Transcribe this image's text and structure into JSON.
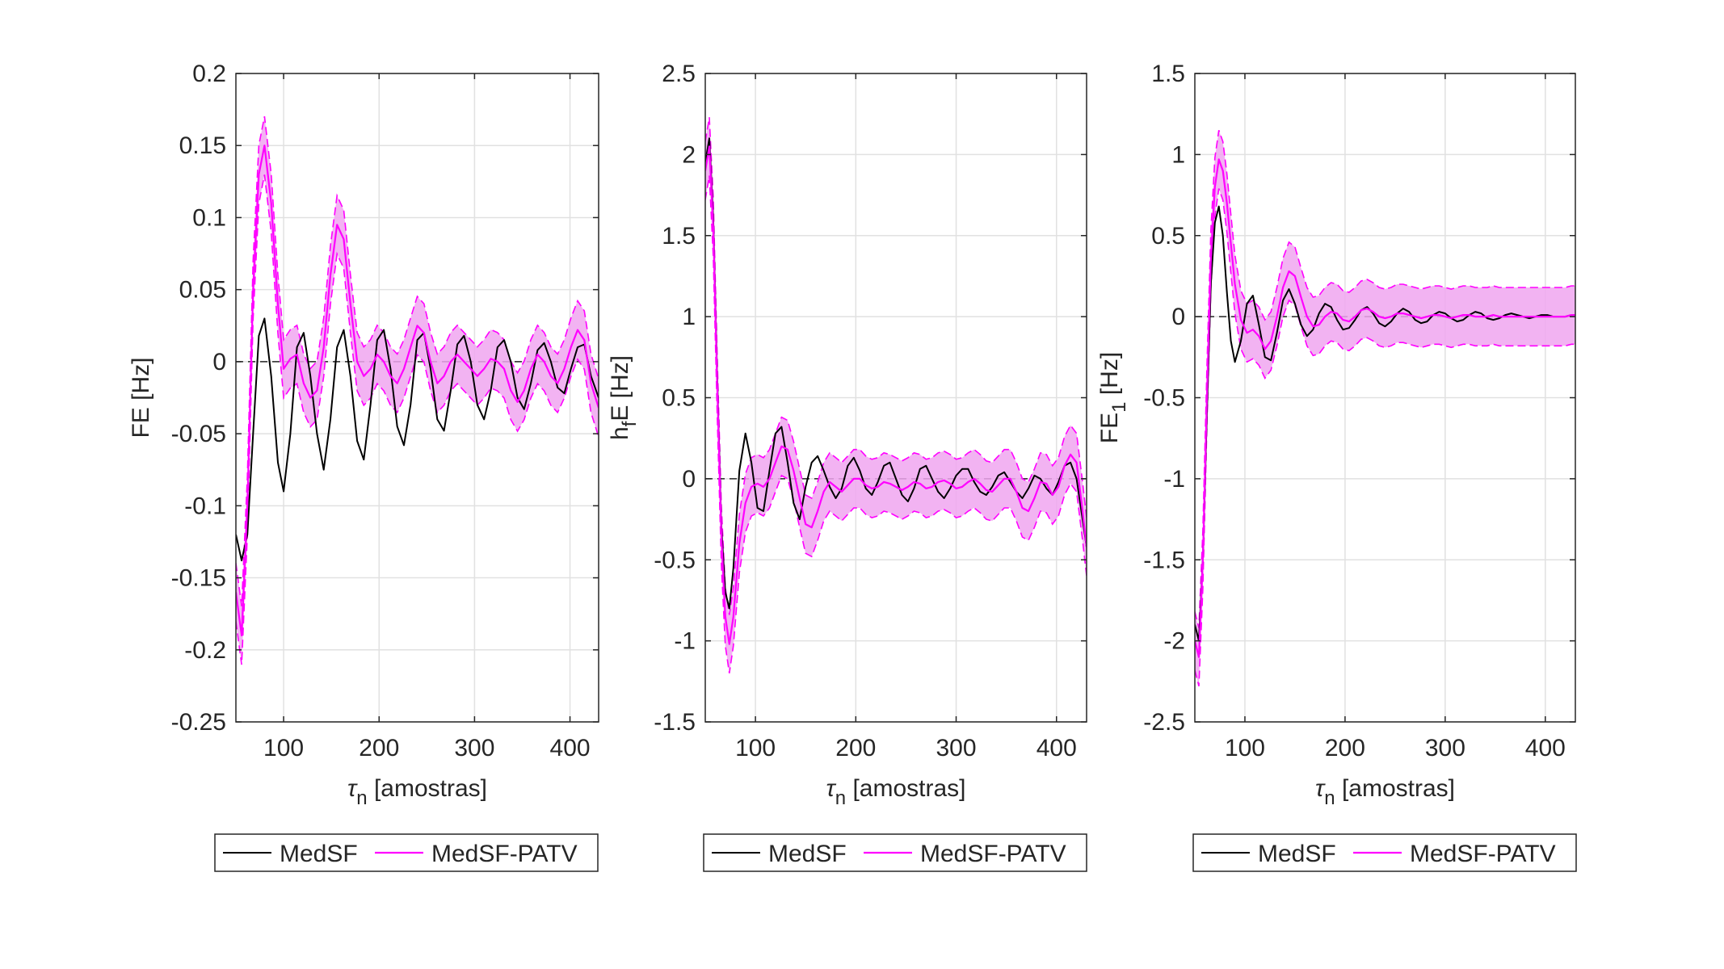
{
  "colors": {
    "medsf": "#000000",
    "medsf_patv": "#ff00ff",
    "band_fill": "#f0a6f0",
    "zero_line": "#262626",
    "grid": "#e1e1e1",
    "axes": "#262626"
  },
  "legend": {
    "entries": [
      "MedSF",
      "MedSF-PATV"
    ]
  },
  "chart_data": [
    {
      "type": "line",
      "ylabel": "FE [Hz]",
      "xlabel": "τn [amostras]",
      "xlim": [
        50,
        430
      ],
      "ylim": [
        -0.25,
        0.2
      ],
      "xticks": [
        100,
        200,
        300,
        400
      ],
      "yticks": [
        -0.25,
        -0.2,
        -0.15,
        -0.1,
        -0.05,
        0,
        0.05,
        0.1,
        0.15,
        0.2
      ],
      "ytick_labels": [
        "-0.25",
        "-0.2",
        "-0.15",
        "-0.1",
        "-0.05",
        "0",
        "0.05",
        "0.1",
        "0.15",
        "0.2"
      ],
      "grid": true,
      "zero_line": true,
      "legend_placement": "below",
      "series": [
        {
          "name": "MedSF",
          "x": [
            50,
            56,
            62,
            68,
            74,
            80,
            87,
            94,
            100,
            107,
            114,
            121,
            128,
            135,
            142,
            149,
            156,
            163,
            170,
            177,
            184,
            191,
            198,
            205,
            212,
            219,
            226,
            233,
            240,
            247,
            254,
            261,
            268,
            275,
            282,
            289,
            296,
            303,
            310,
            317,
            324,
            331,
            338,
            345,
            352,
            359,
            366,
            373,
            380,
            387,
            394,
            401,
            408,
            415,
            422,
            430
          ],
          "y": [
            -0.12,
            -0.138,
            -0.12,
            -0.05,
            0.018,
            0.03,
            -0.01,
            -0.07,
            -0.09,
            -0.05,
            0.01,
            0.02,
            -0.01,
            -0.05,
            -0.075,
            -0.04,
            0.01,
            0.022,
            -0.01,
            -0.055,
            -0.068,
            -0.03,
            0.015,
            0.022,
            -0.005,
            -0.045,
            -0.058,
            -0.03,
            0.015,
            0.02,
            -0.005,
            -0.04,
            -0.048,
            -0.02,
            0.012,
            0.018,
            0.0,
            -0.03,
            -0.04,
            -0.02,
            0.01,
            0.015,
            0.0,
            -0.025,
            -0.033,
            -0.015,
            0.008,
            0.013,
            0.0,
            -0.018,
            -0.022,
            -0.005,
            0.01,
            0.012,
            -0.01,
            -0.025
          ]
        },
        {
          "name": "MedSF-PATV",
          "x": [
            50,
            56,
            62,
            68,
            74,
            80,
            87,
            94,
            100,
            107,
            114,
            121,
            128,
            135,
            142,
            149,
            156,
            163,
            170,
            177,
            184,
            191,
            198,
            205,
            212,
            219,
            226,
            233,
            240,
            247,
            254,
            261,
            268,
            275,
            282,
            289,
            296,
            303,
            310,
            317,
            324,
            331,
            338,
            345,
            352,
            359,
            366,
            373,
            380,
            387,
            394,
            401,
            408,
            415,
            422,
            430
          ],
          "y": [
            -0.16,
            -0.19,
            -0.1,
            0.05,
            0.13,
            0.15,
            0.11,
            0.04,
            -0.005,
            0.002,
            0.005,
            -0.015,
            -0.025,
            -0.02,
            0.01,
            0.06,
            0.095,
            0.085,
            0.04,
            0.0,
            -0.01,
            -0.005,
            0.005,
            0.0,
            -0.01,
            -0.015,
            -0.005,
            0.01,
            0.025,
            0.02,
            0.0,
            -0.015,
            -0.01,
            0.0,
            0.005,
            0.0,
            -0.005,
            -0.01,
            -0.005,
            0.002,
            0.0,
            -0.005,
            -0.02,
            -0.028,
            -0.02,
            -0.005,
            0.005,
            0.0,
            -0.01,
            -0.015,
            -0.005,
            0.01,
            0.022,
            0.015,
            -0.015,
            -0.032
          ]
        }
      ]
    },
    {
      "type": "line",
      "ylabel": "hfE [Hz]",
      "ylabel_main": "h",
      "ylabel_sub": "f",
      "ylabel_rest": "E [Hz]",
      "xlabel": "τn [amostras]",
      "xlim": [
        50,
        430
      ],
      "ylim": [
        -1.5,
        2.5
      ],
      "xticks": [
        100,
        200,
        300,
        400
      ],
      "yticks": [
        -1.5,
        -1,
        -0.5,
        0,
        0.5,
        1,
        1.5,
        2,
        2.5
      ],
      "ytick_labels": [
        "-1.5",
        "-1",
        "-0.5",
        "0",
        "0.5",
        "1",
        "1.5",
        "2",
        "2.5"
      ],
      "grid": true,
      "zero_line": true,
      "legend_placement": "below",
      "series": [
        {
          "name": "MedSF",
          "x": [
            50,
            54,
            58,
            62,
            66,
            70,
            74,
            78,
            84,
            90,
            96,
            102,
            108,
            114,
            120,
            126,
            132,
            138,
            144,
            150,
            156,
            162,
            168,
            174,
            180,
            186,
            192,
            198,
            204,
            210,
            216,
            222,
            228,
            234,
            240,
            246,
            252,
            258,
            264,
            270,
            276,
            282,
            288,
            294,
            300,
            306,
            312,
            318,
            324,
            330,
            336,
            342,
            348,
            354,
            360,
            366,
            372,
            378,
            384,
            390,
            396,
            402,
            408,
            414,
            420,
            426,
            430
          ],
          "y": [
            1.95,
            2.1,
            1.6,
            0.6,
            -0.3,
            -0.7,
            -0.8,
            -0.55,
            0.05,
            0.28,
            0.1,
            -0.18,
            -0.2,
            0.05,
            0.28,
            0.32,
            0.1,
            -0.15,
            -0.25,
            -0.05,
            0.1,
            0.14,
            0.05,
            -0.05,
            -0.12,
            -0.06,
            0.08,
            0.13,
            0.05,
            -0.06,
            -0.1,
            -0.02,
            0.08,
            0.1,
            0.0,
            -0.1,
            -0.14,
            -0.06,
            0.06,
            0.08,
            0.0,
            -0.08,
            -0.12,
            -0.06,
            0.02,
            0.06,
            0.06,
            -0.02,
            -0.08,
            -0.1,
            -0.05,
            0.02,
            0.04,
            -0.02,
            -0.08,
            -0.12,
            -0.06,
            0.02,
            0.0,
            -0.06,
            -0.1,
            -0.02,
            0.08,
            0.1,
            0.0,
            -0.25,
            -0.42
          ]
        },
        {
          "name": "MedSF-PATV",
          "x": [
            50,
            54,
            58,
            62,
            66,
            70,
            74,
            78,
            84,
            90,
            96,
            102,
            108,
            114,
            120,
            126,
            132,
            138,
            144,
            150,
            156,
            162,
            168,
            174,
            180,
            186,
            192,
            198,
            204,
            210,
            216,
            222,
            228,
            234,
            240,
            246,
            252,
            258,
            264,
            270,
            276,
            282,
            288,
            294,
            300,
            306,
            312,
            318,
            324,
            330,
            336,
            342,
            348,
            354,
            360,
            366,
            372,
            378,
            384,
            390,
            396,
            402,
            408,
            414,
            420,
            426,
            430
          ],
          "y": [
            1.9,
            2.05,
            1.55,
            0.55,
            -0.35,
            -0.85,
            -1.02,
            -0.85,
            -0.4,
            -0.15,
            -0.05,
            -0.03,
            -0.05,
            0.0,
            0.1,
            0.2,
            0.18,
            0.05,
            -0.12,
            -0.28,
            -0.3,
            -0.2,
            -0.08,
            -0.02,
            -0.05,
            -0.08,
            -0.04,
            0.0,
            0.0,
            -0.04,
            -0.06,
            -0.05,
            -0.02,
            -0.03,
            -0.05,
            -0.07,
            -0.05,
            -0.02,
            -0.03,
            -0.06,
            -0.05,
            -0.02,
            -0.01,
            -0.03,
            -0.06,
            -0.05,
            -0.02,
            0.0,
            -0.03,
            -0.07,
            -0.08,
            -0.04,
            0.0,
            0.0,
            -0.08,
            -0.18,
            -0.2,
            -0.12,
            -0.02,
            -0.03,
            -0.1,
            -0.05,
            0.08,
            0.15,
            0.1,
            -0.2,
            -0.42
          ]
        }
      ]
    },
    {
      "type": "line",
      "ylabel": "FE1 [Hz]",
      "ylabel_main": "FE",
      "ylabel_sub": "1",
      "ylabel_rest": " [Hz]",
      "xlabel": "τn [amostras]",
      "xlim": [
        50,
        430
      ],
      "ylim": [
        -2.5,
        1.5
      ],
      "xticks": [
        100,
        200,
        300,
        400
      ],
      "yticks": [
        -2.5,
        -2,
        -1.5,
        -1,
        -0.5,
        0,
        0.5,
        1,
        1.5
      ],
      "ytick_labels": [
        "-2.5",
        "-2",
        "-1.5",
        "-1",
        "-0.5",
        "0",
        "0.5",
        "1",
        "1.5"
      ],
      "grid": true,
      "zero_line": true,
      "legend_placement": "below",
      "series": [
        {
          "name": "MedSF",
          "x": [
            50,
            54,
            58,
            62,
            66,
            70,
            74,
            78,
            82,
            86,
            90,
            96,
            102,
            108,
            114,
            120,
            126,
            132,
            138,
            144,
            150,
            156,
            162,
            168,
            174,
            180,
            186,
            192,
            198,
            204,
            210,
            216,
            222,
            228,
            234,
            240,
            246,
            252,
            258,
            264,
            270,
            276,
            282,
            288,
            294,
            300,
            306,
            312,
            318,
            324,
            330,
            336,
            342,
            348,
            354,
            360,
            366,
            372,
            378,
            384,
            390,
            396,
            402,
            408,
            414,
            420,
            426,
            430
          ],
          "y": [
            -1.9,
            -2.0,
            -1.5,
            -0.6,
            0.2,
            0.58,
            0.68,
            0.5,
            0.15,
            -0.15,
            -0.28,
            -0.15,
            0.08,
            0.13,
            -0.05,
            -0.25,
            -0.27,
            -0.1,
            0.1,
            0.17,
            0.08,
            -0.05,
            -0.12,
            -0.08,
            0.02,
            0.08,
            0.06,
            -0.02,
            -0.08,
            -0.07,
            -0.02,
            0.04,
            0.06,
            0.02,
            -0.04,
            -0.06,
            -0.03,
            0.02,
            0.05,
            0.03,
            -0.02,
            -0.04,
            -0.03,
            0.01,
            0.03,
            0.02,
            -0.01,
            -0.03,
            -0.02,
            0.01,
            0.03,
            0.02,
            -0.01,
            -0.02,
            -0.01,
            0.01,
            0.02,
            0.01,
            0.0,
            -0.01,
            0.0,
            0.01,
            0.01,
            0.0,
            0.0,
            0.0,
            0.01,
            0.01
          ]
        },
        {
          "name": "MedSF-PATV",
          "x": [
            50,
            54,
            58,
            62,
            66,
            70,
            74,
            78,
            82,
            86,
            90,
            96,
            102,
            108,
            114,
            120,
            126,
            132,
            138,
            144,
            150,
            156,
            162,
            168,
            174,
            180,
            186,
            192,
            198,
            204,
            210,
            216,
            222,
            228,
            234,
            240,
            246,
            252,
            258,
            264,
            270,
            276,
            282,
            288,
            294,
            300,
            306,
            312,
            318,
            324,
            330,
            336,
            342,
            348,
            354,
            360,
            366,
            372,
            378,
            384,
            390,
            396,
            402,
            408,
            414,
            420,
            426,
            430
          ],
          "y": [
            -2.0,
            -2.1,
            -1.5,
            -0.5,
            0.35,
            0.8,
            0.97,
            0.9,
            0.7,
            0.45,
            0.2,
            -0.02,
            -0.1,
            -0.08,
            -0.12,
            -0.2,
            -0.15,
            0.0,
            0.18,
            0.28,
            0.25,
            0.12,
            0.0,
            -0.06,
            -0.05,
            0.0,
            0.03,
            0.02,
            -0.02,
            -0.03,
            0.0,
            0.04,
            0.05,
            0.03,
            0.0,
            -0.01,
            0.0,
            0.02,
            0.02,
            0.01,
            0.0,
            -0.01,
            0.0,
            0.01,
            0.01,
            0.0,
            -0.01,
            0.0,
            0.01,
            0.01,
            0.0,
            0.0,
            0.0,
            0.01,
            0.0,
            0.0,
            0.0,
            0.0,
            0.0,
            0.0,
            0.0,
            0.0,
            0.0,
            0.0,
            0.0,
            0.0,
            0.01,
            0.01
          ]
        }
      ]
    }
  ]
}
